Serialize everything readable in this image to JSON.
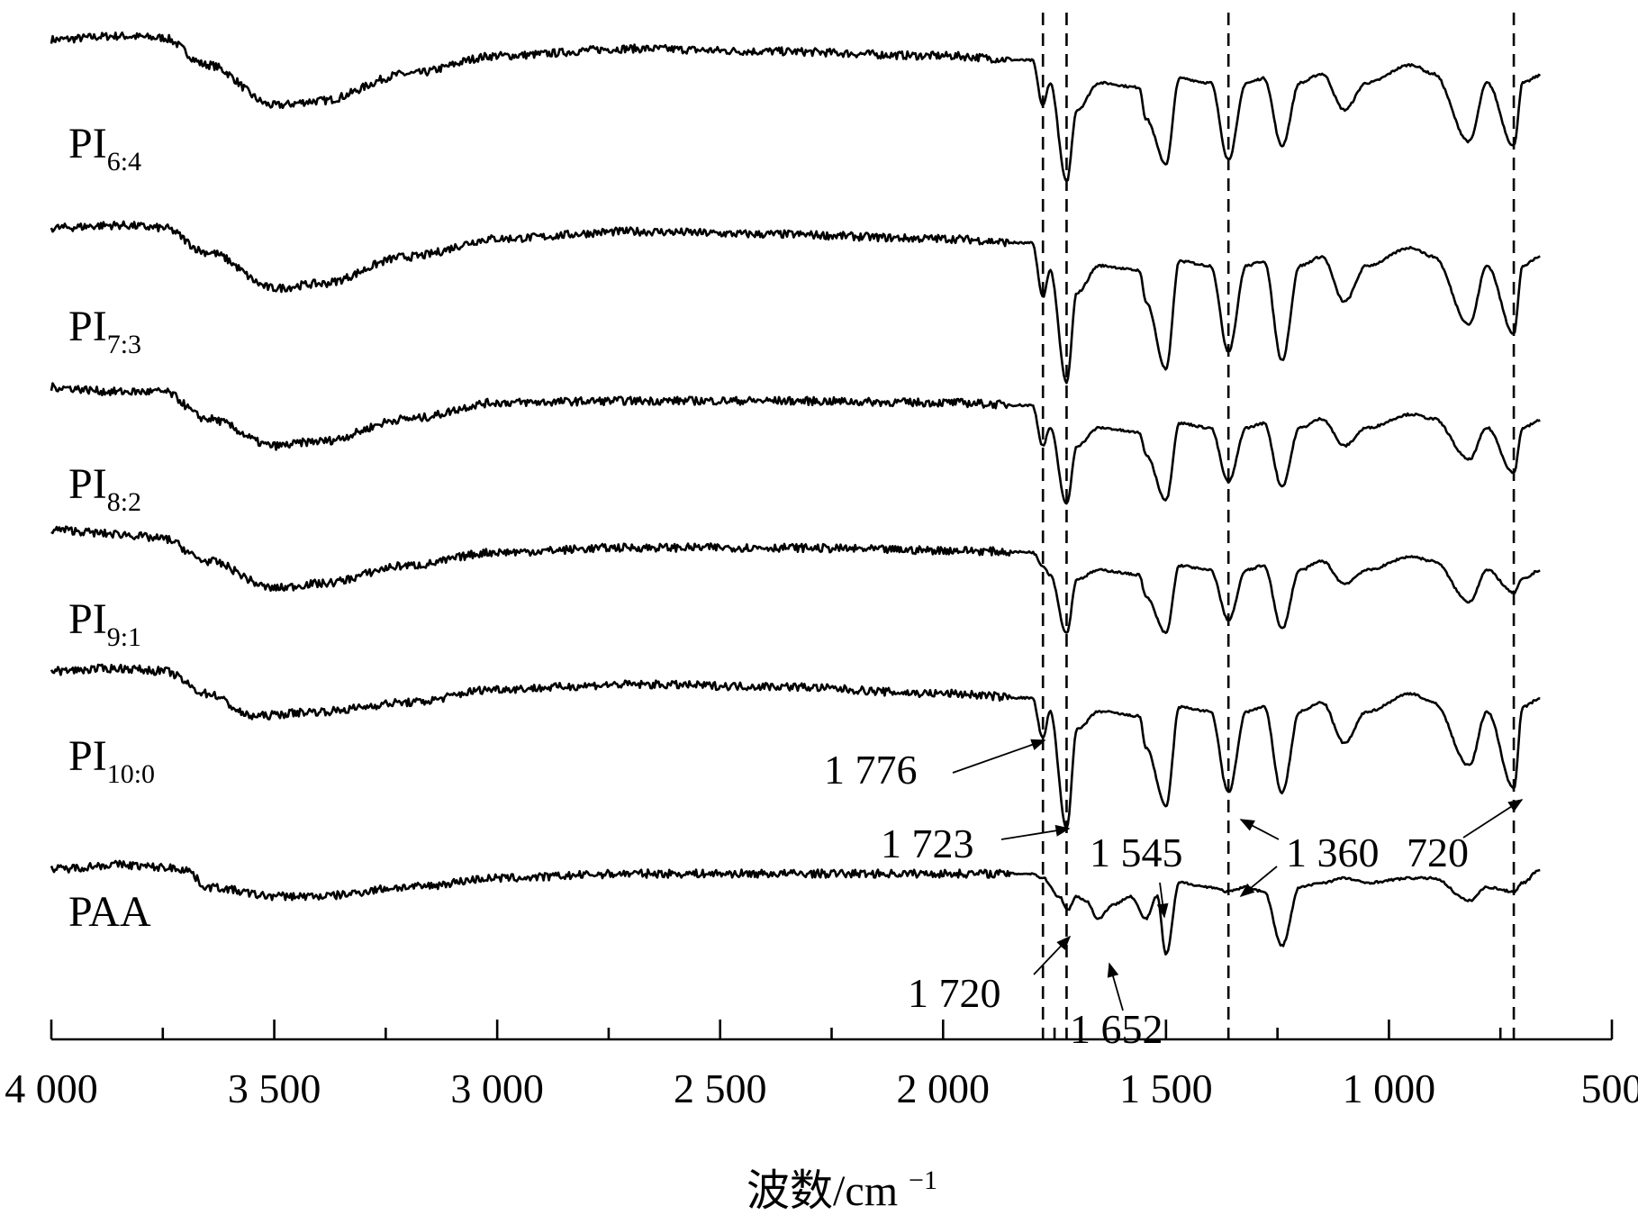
{
  "chart_data": {
    "type": "line",
    "title": "",
    "xlabel": "波数/cm",
    "xlabel_sup": "−1",
    "ylabel": "",
    "xlim": [
      4000,
      500
    ],
    "x_reversed": true,
    "x_ticks": [
      4000,
      3500,
      3000,
      2500,
      2000,
      1500,
      1000,
      500
    ],
    "x_tick_labels": [
      "4 000",
      "3 500",
      "3 000",
      "2 500",
      "2 000",
      "1 500",
      "1 000",
      "500"
    ],
    "grid": false,
    "legend": "none",
    "series": [
      {
        "label_main": "PI",
        "label_sub": "6:4",
        "points": [
          [
            4000,
            0.58
          ],
          [
            3850,
            0.62
          ],
          [
            3750,
            0.6
          ],
          [
            3650,
            0.3
          ],
          [
            3500,
            -0.15
          ],
          [
            3400,
            -0.1
          ],
          [
            3200,
            0.2
          ],
          [
            3000,
            0.4
          ],
          [
            2700,
            0.48
          ],
          [
            2400,
            0.45
          ],
          [
            2000,
            0.4
          ],
          [
            1800,
            0.35
          ],
          [
            1776,
            -0.15
          ],
          [
            1760,
            0.1
          ],
          [
            1723,
            -1.0
          ],
          [
            1700,
            -0.2
          ],
          [
            1650,
            0.1
          ],
          [
            1560,
            0.05
          ],
          [
            1545,
            -0.3
          ],
          [
            1500,
            -0.8
          ],
          [
            1470,
            0.15
          ],
          [
            1400,
            0.1
          ],
          [
            1360,
            -0.75
          ],
          [
            1320,
            0.1
          ],
          [
            1280,
            0.15
          ],
          [
            1240,
            -0.6
          ],
          [
            1200,
            0.1
          ],
          [
            1150,
            0.2
          ],
          [
            1100,
            -0.2
          ],
          [
            1050,
            0.1
          ],
          [
            950,
            0.3
          ],
          [
            900,
            0.2
          ],
          [
            820,
            -0.55
          ],
          [
            780,
            0.1
          ],
          [
            720,
            -0.6
          ],
          [
            700,
            0.1
          ],
          [
            660,
            0.18
          ]
        ]
      },
      {
        "label_main": "PI",
        "label_sub": "7:3",
        "points": [
          [
            4000,
            0.52
          ],
          [
            3850,
            0.55
          ],
          [
            3750,
            0.52
          ],
          [
            3650,
            0.25
          ],
          [
            3500,
            -0.15
          ],
          [
            3400,
            -0.1
          ],
          [
            3200,
            0.2
          ],
          [
            3000,
            0.4
          ],
          [
            2700,
            0.48
          ],
          [
            2400,
            0.45
          ],
          [
            2000,
            0.4
          ],
          [
            1800,
            0.35
          ],
          [
            1776,
            -0.25
          ],
          [
            1760,
            0.05
          ],
          [
            1723,
            -1.2
          ],
          [
            1700,
            -0.2
          ],
          [
            1650,
            0.1
          ],
          [
            1560,
            0.05
          ],
          [
            1545,
            -0.3
          ],
          [
            1500,
            -1.05
          ],
          [
            1470,
            0.15
          ],
          [
            1400,
            0.1
          ],
          [
            1360,
            -0.85
          ],
          [
            1320,
            0.1
          ],
          [
            1280,
            0.15
          ],
          [
            1240,
            -0.95
          ],
          [
            1200,
            0.1
          ],
          [
            1150,
            0.2
          ],
          [
            1100,
            -0.3
          ],
          [
            1050,
            0.1
          ],
          [
            950,
            0.3
          ],
          [
            900,
            0.2
          ],
          [
            820,
            -0.55
          ],
          [
            780,
            0.1
          ],
          [
            720,
            -0.65
          ],
          [
            700,
            0.1
          ],
          [
            660,
            0.2
          ]
        ]
      },
      {
        "label_main": "PI",
        "label_sub": "8:2",
        "points": [
          [
            4000,
            0.55
          ],
          [
            3850,
            0.5
          ],
          [
            3750,
            0.5
          ],
          [
            3650,
            0.2
          ],
          [
            3500,
            -0.1
          ],
          [
            3400,
            -0.05
          ],
          [
            3200,
            0.2
          ],
          [
            3000,
            0.38
          ],
          [
            2700,
            0.4
          ],
          [
            2400,
            0.4
          ],
          [
            2000,
            0.38
          ],
          [
            1800,
            0.35
          ],
          [
            1776,
            -0.1
          ],
          [
            1760,
            0.1
          ],
          [
            1723,
            -0.75
          ],
          [
            1700,
            -0.1
          ],
          [
            1650,
            0.1
          ],
          [
            1560,
            0.05
          ],
          [
            1545,
            -0.2
          ],
          [
            1500,
            -0.7
          ],
          [
            1470,
            0.15
          ],
          [
            1400,
            0.1
          ],
          [
            1360,
            -0.5
          ],
          [
            1320,
            0.1
          ],
          [
            1280,
            0.15
          ],
          [
            1240,
            -0.55
          ],
          [
            1200,
            0.1
          ],
          [
            1150,
            0.2
          ],
          [
            1100,
            -0.1
          ],
          [
            1050,
            0.1
          ],
          [
            950,
            0.25
          ],
          [
            900,
            0.2
          ],
          [
            820,
            -0.25
          ],
          [
            780,
            0.1
          ],
          [
            720,
            -0.4
          ],
          [
            700,
            0.1
          ],
          [
            660,
            0.18
          ]
        ]
      },
      {
        "label_main": "PI",
        "label_sub": "9:1",
        "points": [
          [
            4000,
            0.55
          ],
          [
            3850,
            0.5
          ],
          [
            3750,
            0.45
          ],
          [
            3650,
            0.2
          ],
          [
            3500,
            -0.1
          ],
          [
            3400,
            -0.05
          ],
          [
            3200,
            0.15
          ],
          [
            3000,
            0.3
          ],
          [
            2700,
            0.35
          ],
          [
            2400,
            0.35
          ],
          [
            2000,
            0.32
          ],
          [
            1800,
            0.3
          ],
          [
            1776,
            0.15
          ],
          [
            1760,
            0.05
          ],
          [
            1723,
            -0.6
          ],
          [
            1700,
            0.0
          ],
          [
            1650,
            0.1
          ],
          [
            1560,
            0.05
          ],
          [
            1545,
            -0.2
          ],
          [
            1500,
            -0.6
          ],
          [
            1470,
            0.15
          ],
          [
            1400,
            0.1
          ],
          [
            1360,
            -0.45
          ],
          [
            1320,
            0.1
          ],
          [
            1280,
            0.15
          ],
          [
            1240,
            -0.55
          ],
          [
            1200,
            0.1
          ],
          [
            1150,
            0.2
          ],
          [
            1100,
            -0.05
          ],
          [
            1050,
            0.1
          ],
          [
            950,
            0.25
          ],
          [
            900,
            0.2
          ],
          [
            820,
            -0.25
          ],
          [
            780,
            0.1
          ],
          [
            720,
            -0.15
          ],
          [
            700,
            0.0
          ],
          [
            660,
            0.1
          ]
        ]
      },
      {
        "label_main": "PI",
        "label_sub": "10:0",
        "points": [
          [
            4000,
            0.55
          ],
          [
            3850,
            0.58
          ],
          [
            3750,
            0.55
          ],
          [
            3650,
            0.3
          ],
          [
            3550,
            0.05
          ],
          [
            3400,
            0.1
          ],
          [
            3200,
            0.2
          ],
          [
            3000,
            0.35
          ],
          [
            2700,
            0.4
          ],
          [
            2400,
            0.38
          ],
          [
            2000,
            0.3
          ],
          [
            1800,
            0.25
          ],
          [
            1776,
            -0.2
          ],
          [
            1760,
            0.1
          ],
          [
            1723,
            -1.2
          ],
          [
            1700,
            -0.1
          ],
          [
            1650,
            0.1
          ],
          [
            1560,
            0.05
          ],
          [
            1545,
            -0.3
          ],
          [
            1500,
            -0.95
          ],
          [
            1470,
            0.15
          ],
          [
            1400,
            0.1
          ],
          [
            1360,
            -0.8
          ],
          [
            1320,
            0.1
          ],
          [
            1280,
            0.15
          ],
          [
            1240,
            -0.8
          ],
          [
            1200,
            0.1
          ],
          [
            1150,
            0.2
          ],
          [
            1100,
            -0.25
          ],
          [
            1050,
            0.1
          ],
          [
            950,
            0.3
          ],
          [
            900,
            0.2
          ],
          [
            820,
            -0.5
          ],
          [
            780,
            0.1
          ],
          [
            720,
            -0.75
          ],
          [
            700,
            0.15
          ],
          [
            660,
            0.25
          ]
        ]
      },
      {
        "label_main": "PAA",
        "label_sub": "",
        "points": [
          [
            4000,
            0.1
          ],
          [
            3850,
            0.15
          ],
          [
            3750,
            0.12
          ],
          [
            3700,
            0.1
          ],
          [
            3650,
            -0.1
          ],
          [
            3500,
            -0.2
          ],
          [
            3400,
            -0.2
          ],
          [
            3200,
            -0.1
          ],
          [
            3000,
            0.0
          ],
          [
            2700,
            0.05
          ],
          [
            2400,
            0.05
          ],
          [
            2000,
            0.05
          ],
          [
            1800,
            0.05
          ],
          [
            1776,
            0.0
          ],
          [
            1740,
            -0.2
          ],
          [
            1720,
            -0.35
          ],
          [
            1700,
            -0.2
          ],
          [
            1680,
            -0.25
          ],
          [
            1652,
            -0.45
          ],
          [
            1620,
            -0.3
          ],
          [
            1580,
            -0.2
          ],
          [
            1545,
            -0.45
          ],
          [
            1520,
            -0.2
          ],
          [
            1500,
            -0.85
          ],
          [
            1470,
            -0.05
          ],
          [
            1400,
            -0.1
          ],
          [
            1360,
            -0.15
          ],
          [
            1320,
            -0.1
          ],
          [
            1280,
            -0.15
          ],
          [
            1240,
            -0.75
          ],
          [
            1200,
            -0.1
          ],
          [
            1150,
            -0.05
          ],
          [
            1100,
            0.0
          ],
          [
            1050,
            -0.05
          ],
          [
            950,
            0.0
          ],
          [
            900,
            0.0
          ],
          [
            820,
            -0.25
          ],
          [
            780,
            -0.1
          ],
          [
            720,
            -0.15
          ],
          [
            700,
            -0.05
          ],
          [
            660,
            0.1
          ]
        ]
      }
    ],
    "reference_lines_x": [
      1776,
      1723,
      1360,
      720
    ],
    "annotations": [
      {
        "text": "1 776",
        "x": 1776
      },
      {
        "text": "1 723",
        "x": 1723
      },
      {
        "text": "1 545",
        "x": 1545
      },
      {
        "text": "1 360",
        "x": 1360
      },
      {
        "text": "720",
        "x": 720
      },
      {
        "text": "1 720",
        "x": 1720
      },
      {
        "text": "1 652",
        "x": 1652
      }
    ]
  }
}
